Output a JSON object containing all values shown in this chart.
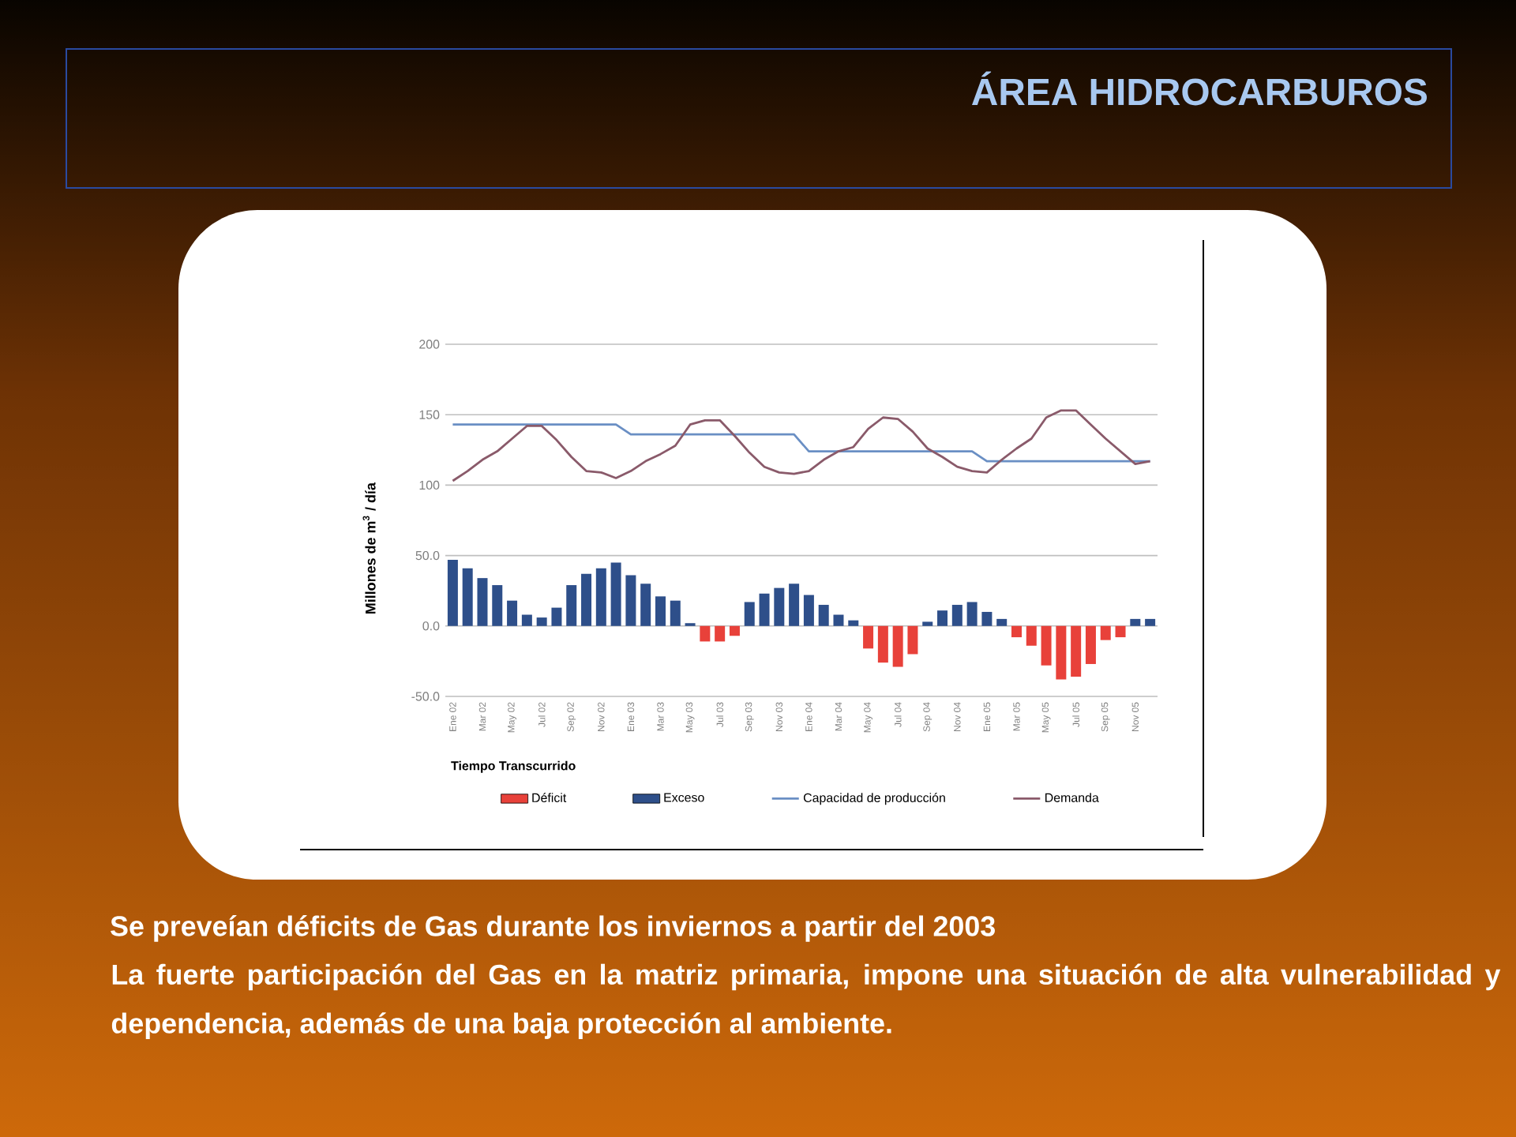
{
  "chart_data": {
    "type": "bar",
    "title": "ÁREA HIDROCARBUROS",
    "subtitle": "Se preveían déficits de Gas durante los inviernos a partir del 2003",
    "annotations": [
      "La fuerte participación del Gas en la matriz primaria, impone una situación de alta vulnerabilidad y dependencia, además de una baja protección al ambiente."
    ],
    "xlabel": "Tiempo Transcurrido",
    "ylabel": "Millones de m$^{3}$ / día",
    "categories": [
      "Ene 02",
      null,
      "Mar 02",
      null,
      "May 02",
      null,
      "Jul 02",
      null,
      "Sep 02",
      null,
      "Nov 02",
      null,
      "Ene 03",
      null,
      "Mar 03",
      null,
      "May 03",
      null,
      "Jul 03",
      null,
      "Sep 03",
      null,
      "Nov 03",
      null,
      "Ene 04",
      null,
      "Mar 04",
      null,
      "May 04",
      null,
      "Jul 04",
      null,
      "Sep 04",
      null,
      "Nov 04",
      null,
      "Ene 05",
      null,
      "Mar 05",
      null,
      "May 05",
      null,
      "Jul 05",
      null,
      "Sep 05",
      null,
      "Nov 05",
      null
    ],
    "series": [
      {
        "name": "Déficit",
        "color": "#e8413a",
        "values": [
          null,
          null,
          null,
          null,
          null,
          null,
          null,
          null,
          null,
          null,
          null,
          null,
          null,
          null,
          null,
          null,
          null,
          -11,
          -11,
          -7,
          null,
          null,
          null,
          null,
          null,
          null,
          null,
          null,
          -16,
          -26,
          -29,
          -20,
          null,
          null,
          null,
          null,
          null,
          null,
          -8,
          -14,
          -28,
          -38,
          -36,
          -27,
          -10,
          -8,
          null,
          null
        ]
      },
      {
        "name": "Exceso",
        "color": "#2e4f8a",
        "values": [
          47,
          41,
          34,
          29,
          18,
          8,
          6,
          13,
          29,
          37,
          41,
          45,
          36,
          30,
          21,
          18,
          2,
          null,
          null,
          null,
          17,
          23,
          27,
          30,
          22,
          15,
          8,
          4,
          null,
          null,
          null,
          null,
          3,
          11,
          15,
          17,
          10,
          5,
          null,
          null,
          null,
          null,
          null,
          null,
          null,
          null,
          5,
          5
        ]
      },
      {
        "name": "Capacidad de producción",
        "type": "line",
        "color": "#6a8fc4",
        "values": [
          143,
          143,
          143,
          143,
          143,
          143,
          143,
          143,
          143,
          143,
          143,
          143,
          136,
          136,
          136,
          136,
          136,
          136,
          136,
          136,
          136,
          136,
          136,
          136,
          124,
          124,
          124,
          124,
          124,
          124,
          124,
          124,
          124,
          124,
          124,
          124,
          117,
          117,
          117,
          117,
          117,
          117,
          117,
          117,
          117,
          117,
          117,
          117
        ]
      },
      {
        "name": "Demanda",
        "type": "line",
        "color": "#8a5a6a",
        "values": [
          103,
          110,
          118,
          124,
          133,
          142,
          142,
          132,
          120,
          110,
          109,
          105,
          110,
          117,
          122,
          128,
          143,
          146,
          146,
          135,
          123,
          113,
          109,
          108,
          110,
          118,
          124,
          127,
          140,
          148,
          147,
          138,
          126,
          120,
          113,
          110,
          109,
          118,
          126,
          133,
          148,
          153,
          153,
          143,
          133,
          124,
          115,
          117
        ]
      }
    ],
    "ylim": [
      -50,
      200
    ],
    "yticks": [
      {
        "value": -50,
        "label": "-50.0"
      },
      {
        "value": 0,
        "label": "0.0"
      },
      {
        "value": 50,
        "label": "50.0"
      },
      100,
      150,
      200
    ],
    "grid": "y",
    "legend": "bottom"
  }
}
